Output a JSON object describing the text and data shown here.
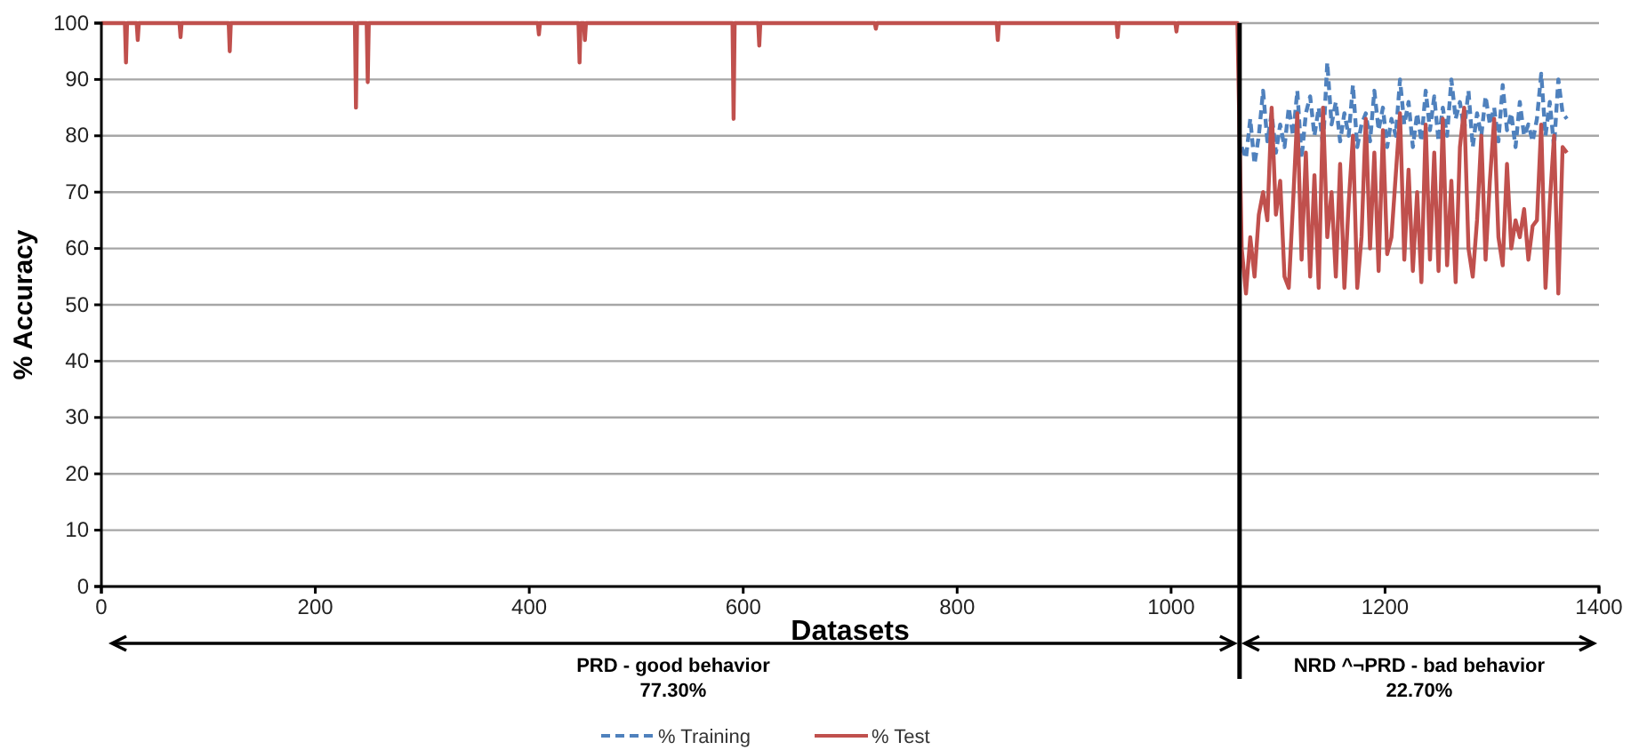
{
  "chart_data": {
    "type": "line",
    "xlabel": "Datasets",
    "ylabel": "% Accuracy",
    "xlim": [
      0,
      1400
    ],
    "xticks": [
      0,
      200,
      400,
      600,
      800,
      1000,
      1200,
      1400
    ],
    "ylim": [
      0,
      100
    ],
    "yticks": [
      0,
      10,
      20,
      30,
      40,
      50,
      60,
      70,
      80,
      90,
      100
    ],
    "grid": "y",
    "legend": "bottom",
    "marker": "none",
    "ref_lines": [
      {
        "axis": "x",
        "value": 1064,
        "color": "#000000"
      }
    ],
    "annotations": [
      "PRD - good behavior",
      "77.30%",
      "NRD ^¬PRD - bad behavior",
      "22.70%"
    ],
    "series": [
      {
        "name": "% Training",
        "color": "#4f81bd",
        "line_style": "dashed",
        "x": [
          1066,
          1070,
          1074,
          1078,
          1082,
          1086,
          1090,
          1094,
          1098,
          1102,
          1106,
          1110,
          1114,
          1118,
          1122,
          1126,
          1130,
          1134,
          1138,
          1142,
          1146,
          1150,
          1154,
          1158,
          1162,
          1166,
          1170,
          1174,
          1178,
          1182,
          1186,
          1190,
          1194,
          1198,
          1202,
          1206,
          1210,
          1214,
          1218,
          1222,
          1226,
          1230,
          1234,
          1238,
          1242,
          1246,
          1250,
          1254,
          1258,
          1262,
          1266,
          1270,
          1274,
          1278,
          1282,
          1286,
          1290,
          1294,
          1298,
          1302,
          1306,
          1310,
          1314,
          1318,
          1322,
          1326,
          1330,
          1334,
          1338,
          1342,
          1346,
          1350,
          1354,
          1358,
          1362,
          1366,
          1370
        ],
        "values": [
          78,
          76,
          83,
          75,
          80,
          88,
          79,
          84,
          77,
          82,
          78,
          85,
          80,
          88,
          76,
          84,
          87,
          80,
          85,
          78,
          93,
          82,
          86,
          79,
          84,
          80,
          89,
          78,
          82,
          84,
          79,
          88,
          81,
          85,
          78,
          83,
          80,
          90,
          82,
          86,
          78,
          84,
          79,
          88,
          81,
          87,
          79,
          85,
          80,
          90,
          83,
          86,
          81,
          88,
          78,
          84,
          80,
          87,
          82,
          85,
          79,
          89,
          81,
          84,
          78,
          86,
          80,
          82,
          79,
          83,
          91,
          80,
          86,
          78,
          90,
          84,
          83
        ]
      },
      {
        "name": "% Test",
        "color": "#c0504d",
        "line_style": "solid",
        "x": [
          0,
          22,
          23,
          24,
          33,
          34,
          35,
          73,
          74,
          75,
          119,
          120,
          121,
          237,
          238,
          239,
          248,
          249,
          250,
          408,
          409,
          410,
          446,
          447,
          448,
          451,
          452,
          453,
          590,
          591,
          592,
          614,
          615,
          616,
          723,
          724,
          725,
          837,
          838,
          839,
          949,
          950,
          951,
          1004,
          1005,
          1006,
          1062,
          1066,
          1070,
          1074,
          1078,
          1082,
          1086,
          1090,
          1094,
          1098,
          1102,
          1106,
          1110,
          1114,
          1118,
          1122,
          1126,
          1130,
          1134,
          1138,
          1142,
          1146,
          1150,
          1154,
          1158,
          1162,
          1166,
          1170,
          1174,
          1178,
          1182,
          1186,
          1190,
          1194,
          1198,
          1202,
          1206,
          1210,
          1214,
          1218,
          1222,
          1226,
          1230,
          1234,
          1238,
          1242,
          1246,
          1250,
          1254,
          1258,
          1262,
          1266,
          1270,
          1274,
          1278,
          1282,
          1286,
          1290,
          1294,
          1298,
          1302,
          1306,
          1310,
          1314,
          1318,
          1322,
          1326,
          1330,
          1334,
          1338,
          1342,
          1346,
          1350,
          1354,
          1358,
          1362,
          1366,
          1370
        ],
        "values": [
          100,
          100,
          93,
          100,
          100,
          97,
          100,
          100,
          97.5,
          100,
          100,
          95,
          100,
          100,
          85,
          100,
          100,
          89.5,
          100,
          100,
          98,
          100,
          100,
          93,
          100,
          100,
          97,
          100,
          100,
          83,
          100,
          100,
          96,
          100,
          100,
          99,
          100,
          100,
          97,
          100,
          100,
          97.5,
          100,
          100,
          98.5,
          100,
          100,
          60,
          52,
          62,
          55,
          66,
          70,
          65,
          85,
          66,
          72,
          55,
          53,
          68,
          84,
          58,
          77,
          55,
          73,
          53,
          85,
          62,
          70,
          55,
          75,
          53,
          68,
          80,
          53,
          62,
          83,
          60,
          77,
          56,
          81,
          59,
          62,
          73,
          84,
          58,
          74,
          56,
          70,
          54,
          82,
          58,
          77,
          56,
          83,
          57,
          72,
          54,
          78,
          85,
          60,
          55,
          65,
          80,
          58,
          72,
          83,
          62,
          57,
          75,
          60,
          65,
          62,
          67,
          58,
          64,
          65,
          82,
          53,
          68,
          80,
          52,
          78,
          77
        ]
      }
    ]
  }
}
